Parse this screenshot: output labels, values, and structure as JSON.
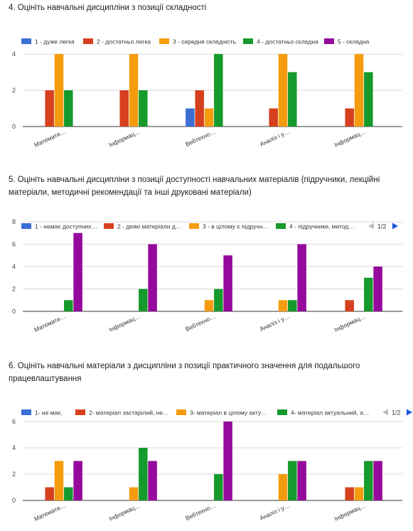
{
  "chart_data": [
    {
      "type": "bar",
      "title": "4. Оцініть навчальні дисципліни з позиції складності",
      "categories": [
        "Математи…",
        "Інформац…",
        "Вебтехно…",
        "Аналіз і у…",
        "Інформац…"
      ],
      "series": [
        {
          "name": "1 - дуже легка",
          "color": "#3b6fd4",
          "values": [
            0,
            0,
            1,
            0,
            0
          ]
        },
        {
          "name": "2 - достатньо легка",
          "color": "#d7401f",
          "values": [
            2,
            2,
            2,
            1,
            1
          ]
        },
        {
          "name": "3 - середня складність",
          "color": "#f59c0e",
          "values": [
            4,
            4,
            1,
            4,
            4
          ]
        },
        {
          "name": "4 - достатньо складна",
          "color": "#169a2c",
          "values": [
            2,
            2,
            4,
            3,
            3
          ]
        },
        {
          "name": "5 - складна",
          "color": "#950a9c",
          "values": [
            0,
            0,
            0,
            0,
            0
          ]
        }
      ],
      "yticks": [
        0,
        2,
        4
      ],
      "ylim": [
        0,
        4
      ],
      "grid": true,
      "legend_position": "top",
      "legend_pager": ""
    },
    {
      "type": "bar",
      "title": "5. Оцініть навчальні дисципліни з позиції доступності навчальних матеріалів (підручники, лекційні матеріали, методичні рекомендації та інші друковані матеріали)",
      "categories": [
        "Математи…",
        "Інформац…",
        "Вебтехно…",
        "Аналіз і у…",
        "Інформац…"
      ],
      "series": [
        {
          "name": "1 - немає доступних…",
          "color": "#3b6fd4",
          "values": [
            0,
            0,
            0,
            0,
            0
          ]
        },
        {
          "name": "2 - деякі матеріали д…",
          "color": "#d7401f",
          "values": [
            0,
            0,
            0,
            0,
            1
          ]
        },
        {
          "name": "3 - в цілому є підручн…",
          "color": "#f59c0e",
          "values": [
            0,
            0,
            1,
            1,
            0
          ]
        },
        {
          "name": "4 - підручники, метод…",
          "color": "#169a2c",
          "values": [
            1,
            2,
            2,
            1,
            3
          ]
        },
        {
          "name": "",
          "color": "#950a9c",
          "values": [
            7,
            6,
            5,
            6,
            4
          ]
        }
      ],
      "yticks": [
        0,
        2,
        4,
        6,
        8
      ],
      "ylim": [
        0,
        8
      ],
      "grid": true,
      "legend_position": "top",
      "legend_pager": "1/2"
    },
    {
      "type": "bar",
      "title": "6. Оцініть навчальні матеріали з дисципліни з позиції практичного значення для подальшого працевлаштування",
      "categories": [
        "Математи…",
        "Інформац…",
        "Вебтехно…",
        "Аналіз і у…",
        "Інформац…"
      ],
      "series": [
        {
          "name": "1- не має,",
          "color": "#3b6fd4",
          "values": [
            0,
            0,
            0,
            0,
            0
          ]
        },
        {
          "name": "2- матеріал застарілий, не…",
          "color": "#d7401f",
          "values": [
            1,
            0,
            0,
            0,
            1
          ]
        },
        {
          "name": "3- матеріал в цілому акту…",
          "color": "#f59c0e",
          "values": [
            3,
            1,
            0,
            2,
            1
          ]
        },
        {
          "name": "4- матеріал актуальний, а…",
          "color": "#169a2c",
          "values": [
            1,
            4,
            2,
            3,
            3
          ]
        },
        {
          "name": "",
          "color": "#950a9c",
          "values": [
            3,
            3,
            6,
            3,
            3
          ]
        }
      ],
      "yticks": [
        0,
        2,
        4,
        6
      ],
      "ylim": [
        0,
        6
      ],
      "grid": true,
      "legend_position": "top",
      "legend_pager": "1/2"
    }
  ]
}
